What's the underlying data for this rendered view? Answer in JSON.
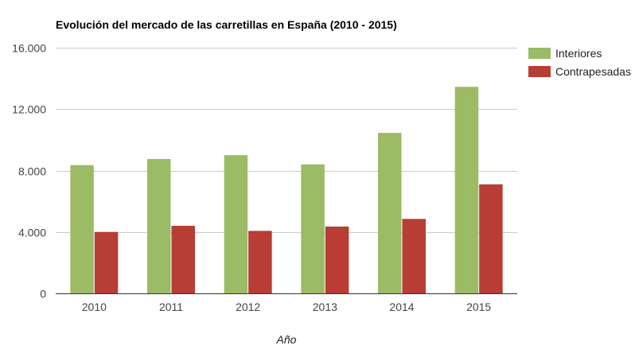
{
  "chart_data": {
    "type": "bar",
    "title": "Evolución del mercado de las carretillas en España (2010 - 2015)",
    "xlabel": "Año",
    "ylabel": "",
    "categories": [
      "2010",
      "2011",
      "2012",
      "2013",
      "2014",
      "2015"
    ],
    "series": [
      {
        "name": "Interiores",
        "color": "#9bbb64",
        "values": [
          8350,
          8750,
          9000,
          8400,
          10450,
          13450
        ]
      },
      {
        "name": "Contrapesadas",
        "color": "#b83d35",
        "values": [
          4000,
          4400,
          4070,
          4350,
          4850,
          7100
        ]
      }
    ],
    "ylim": [
      0,
      16000
    ],
    "yticks": [
      0,
      4000,
      8000,
      12000,
      16000
    ],
    "ytick_labels": [
      "0",
      "4.000",
      "8.000",
      "12.000",
      "16.000"
    ],
    "grid": true,
    "legend_position": "right"
  }
}
